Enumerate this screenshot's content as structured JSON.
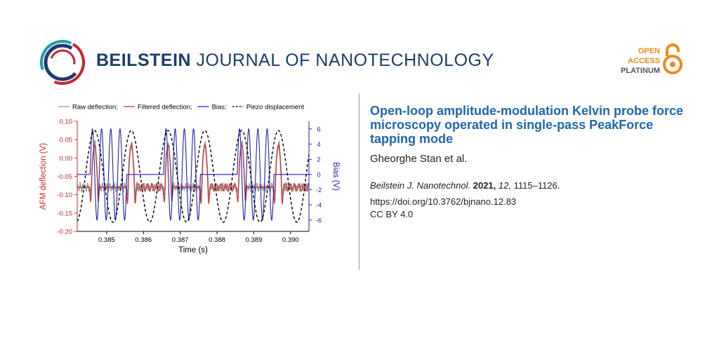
{
  "journal": {
    "name_bold": "BEILSTEIN",
    "name_rest": "JOURNAL OF NANOTECHNOLOGY",
    "badge": {
      "line1": "OPEN",
      "line2": "ACCESS",
      "line3": "PLATINUM"
    },
    "colors": {
      "navy": "#1c3d6e",
      "accent_red": "#c8242e",
      "teal": "#1f9ca8",
      "oa_orange": "#f08a1c"
    }
  },
  "article": {
    "title": "Open-loop amplitude-modulation Kelvin probe force microscopy operated in single-pass PeakForce tapping mode",
    "authors": "Gheorghe Stan et al.",
    "citation": {
      "journal": "Beilstein J. Nanotechnol.",
      "year": "2021,",
      "volume": "12,",
      "pages": "1115–1126."
    },
    "doi": "https://doi.org/10.3762/bjnano.12.83",
    "license": "CC BY 4.0"
  },
  "chart_data": {
    "type": "line",
    "xlabel": "Time (s)",
    "ylabel_left": "AFM deflection (V)",
    "ylabel_right": "Bias (V)",
    "xlim": [
      0.3842,
      0.3905
    ],
    "ylim_left": [
      -0.2,
      0.1
    ],
    "ylim_right": [
      -7.5,
      7.0
    ],
    "x_ticks": [
      "0.385",
      "0.386",
      "0.387",
      "0.388",
      "0.389",
      "0.390"
    ],
    "y_left_ticks": [
      "0.10",
      "0.05",
      "0.00",
      "-0.05",
      "-0.10",
      "-0.15",
      "-0.20"
    ],
    "y_right_ticks": [
      "6",
      "4",
      "2",
      "0",
      "-2",
      "-4",
      "-6"
    ],
    "legend": [
      {
        "label": "Raw deflection;",
        "color": "#999999",
        "style": "solid"
      },
      {
        "label": "Filtered deflection;",
        "color": "#d42a2a",
        "style": "solid"
      },
      {
        "label": "Bias;",
        "color": "#2020c8",
        "style": "solid"
      },
      {
        "label": "Piezo displacement",
        "color": "#000000",
        "style": "dashed"
      }
    ],
    "legend_placement": "top",
    "period_s": 0.001,
    "cycle_starts_s": [
      0.3844,
      0.3854,
      0.3864,
      0.3874,
      0.3884,
      0.3894
    ],
    "series": [
      {
        "name": "Raw deflection",
        "axis": "left",
        "baseline_V": -0.08,
        "peak_V": 0.04,
        "noise_amplitude_V": 0.012
      },
      {
        "name": "Filtered deflection",
        "axis": "left",
        "baseline_V": -0.08,
        "peak_V": 0.035,
        "min_V": -0.18,
        "ripple_amplitude_V": 0.01
      },
      {
        "name": "Bias",
        "axis": "right",
        "off_V": 0.0,
        "amplitude_V": 6.0,
        "oscillations_per_on_segment": 4,
        "segments": [
          {
            "start": 0.3842,
            "end": 0.38455,
            "mode": "off"
          },
          {
            "start": 0.38455,
            "end": 0.38555,
            "mode": "on"
          },
          {
            "start": 0.38555,
            "end": 0.38655,
            "mode": "off"
          },
          {
            "start": 0.38655,
            "end": 0.38755,
            "mode": "on"
          },
          {
            "start": 0.38755,
            "end": 0.38855,
            "mode": "off"
          },
          {
            "start": 0.38855,
            "end": 0.38955,
            "mode": "on"
          },
          {
            "start": 0.38955,
            "end": 0.3905,
            "mode": "off"
          }
        ]
      },
      {
        "name": "Piezo displacement",
        "axis": "left",
        "center_V": -0.05,
        "amplitude_V": 0.125,
        "peak_times_s": [
          0.38467,
          0.38567,
          0.38667,
          0.38767,
          0.38867,
          0.38967
        ]
      }
    ]
  }
}
